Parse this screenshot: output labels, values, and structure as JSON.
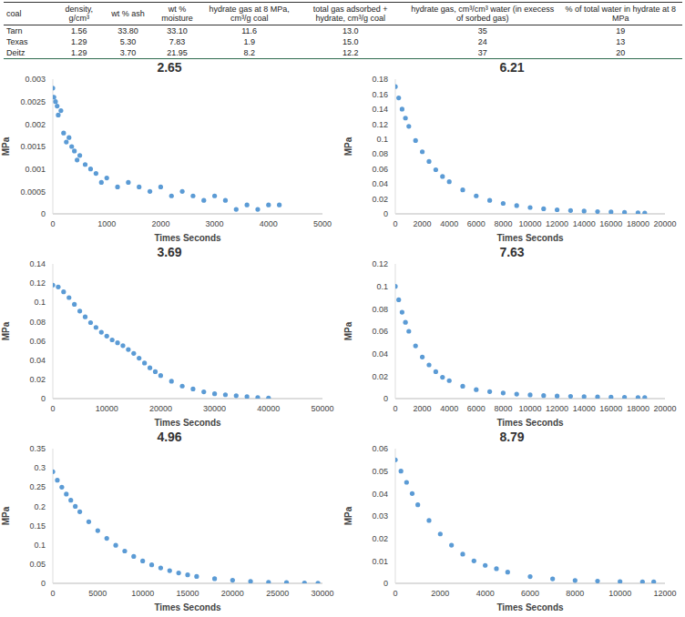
{
  "table": {
    "header": [
      "coal",
      "density, g/cm³",
      "wt % ash",
      "wt % moisture",
      "hydrate gas at 8 MPa, cm³/g coal",
      "total gas adsorbed + hydrate, cm³/g coal",
      "hydrate gas, cm³/cm³ water (in execess of sorbed gas)",
      "% of total water in hydrate at 8 MPa"
    ],
    "rows": [
      [
        "Tarn",
        "1.56",
        "33.80",
        "33.10",
        "11.6",
        "13.0",
        "35",
        "19"
      ],
      [
        "Texas",
        "1.29",
        "5.30",
        "7.83",
        "1.9",
        "15.0",
        "24",
        "13"
      ],
      [
        "Deitz",
        "1.29",
        "3.70",
        "21.95",
        "8.2",
        "12.2",
        "37",
        "20"
      ]
    ]
  },
  "chart_data": [
    {
      "type": "scatter",
      "title": "2.65",
      "x_label": "Times Seconds",
      "y_label": "MPa",
      "color": "#5b9bd5",
      "marker": "circle",
      "grid": false,
      "x": [
        0,
        20,
        50,
        80,
        100,
        150,
        200,
        250,
        300,
        350,
        400,
        450,
        500,
        600,
        700,
        800,
        900,
        1000,
        1200,
        1400,
        1600,
        1800,
        2000,
        2200,
        2400,
        2600,
        2800,
        3000,
        3200,
        3400,
        3600,
        3800,
        4000,
        4200
      ],
      "values": [
        0.0028,
        0.0026,
        0.0025,
        0.0024,
        0.0022,
        0.0023,
        0.0018,
        0.0016,
        0.0017,
        0.0015,
        0.0014,
        0.0012,
        0.0013,
        0.0011,
        0.001,
        0.0009,
        0.0007,
        0.0008,
        0.0006,
        0.0007,
        0.0006,
        0.0005,
        0.0006,
        0.0004,
        0.0005,
        0.0004,
        0.0003,
        0.0004,
        0.0003,
        0.0001,
        0.0002,
        0.0001,
        0.0002,
        0.0002
      ],
      "xlim": [
        0,
        5000
      ],
      "xticks": [
        0,
        1000,
        2000,
        3000,
        4000,
        5000
      ],
      "ylim": [
        0,
        0.003
      ],
      "yticks": [
        0,
        0.0005,
        0.001,
        0.0015,
        0.002,
        0.0025,
        0.003
      ]
    },
    {
      "type": "scatter",
      "title": "6.21",
      "x_label": "Times Seconds",
      "y_label": "MPa",
      "color": "#5b9bd5",
      "marker": "circle",
      "grid": false,
      "x": [
        0,
        250,
        500,
        750,
        1000,
        1500,
        2000,
        2500,
        3000,
        3500,
        4000,
        5000,
        6000,
        7000,
        8000,
        9000,
        10000,
        11000,
        12000,
        13000,
        14000,
        15000,
        16000,
        17000,
        18000,
        18500
      ],
      "values": [
        0.17,
        0.155,
        0.14,
        0.128,
        0.117,
        0.098,
        0.083,
        0.07,
        0.059,
        0.05,
        0.043,
        0.032,
        0.024,
        0.018,
        0.014,
        0.011,
        0.0085,
        0.0068,
        0.0055,
        0.0045,
        0.0037,
        0.003,
        0.0025,
        0.002,
        0.0015,
        0.0012
      ],
      "xlim": [
        0,
        20000
      ],
      "xticks": [
        0,
        2000,
        4000,
        6000,
        8000,
        10000,
        12000,
        14000,
        16000,
        18000,
        20000
      ],
      "ylim": [
        0,
        0.18
      ],
      "yticks": [
        0,
        0.02,
        0.04,
        0.06,
        0.08,
        0.1,
        0.12,
        0.14,
        0.16,
        0.18
      ]
    },
    {
      "type": "scatter",
      "title": "3.69",
      "x_label": "Times Seconds",
      "y_label": "MPa",
      "color": "#5b9bd5",
      "marker": "circle",
      "grid": false,
      "x": [
        0,
        1000,
        2000,
        3000,
        4000,
        5000,
        6000,
        7000,
        8000,
        9000,
        10000,
        11000,
        12000,
        13000,
        14000,
        15000,
        16000,
        17000,
        18000,
        19000,
        20000,
        22000,
        24000,
        26000,
        28000,
        30000,
        32000,
        34000,
        36000,
        38000,
        40000
      ],
      "values": [
        0.118,
        0.116,
        0.111,
        0.105,
        0.098,
        0.091,
        0.085,
        0.079,
        0.074,
        0.069,
        0.065,
        0.061,
        0.058,
        0.055,
        0.051,
        0.047,
        0.042,
        0.037,
        0.032,
        0.028,
        0.024,
        0.018,
        0.013,
        0.01,
        0.007,
        0.005,
        0.004,
        0.003,
        0.002,
        0.001,
        0.0005
      ],
      "xlim": [
        0,
        50000
      ],
      "xticks": [
        0,
        10000,
        20000,
        30000,
        40000,
        50000
      ],
      "ylim": [
        0,
        0.14
      ],
      "yticks": [
        0,
        0.02,
        0.04,
        0.06,
        0.08,
        0.1,
        0.12,
        0.14
      ]
    },
    {
      "type": "scatter",
      "title": "7.63",
      "x_label": "Times Seconds",
      "y_label": "MPa",
      "color": "#5b9bd5",
      "marker": "circle",
      "grid": false,
      "x": [
        0,
        250,
        500,
        750,
        1000,
        1500,
        2000,
        2500,
        3000,
        3500,
        4000,
        5000,
        6000,
        7000,
        8000,
        9000,
        10000,
        11000,
        12000,
        13000,
        14000,
        15000,
        16000,
        17000,
        18000,
        18500
      ],
      "values": [
        0.1,
        0.088,
        0.077,
        0.068,
        0.06,
        0.047,
        0.037,
        0.03,
        0.024,
        0.019,
        0.016,
        0.011,
        0.008,
        0.0062,
        0.005,
        0.004,
        0.0033,
        0.0027,
        0.0023,
        0.002,
        0.0017,
        0.0015,
        0.0013,
        0.0012,
        0.001,
        0.001
      ],
      "xlim": [
        0,
        20000
      ],
      "xticks": [
        0,
        2000,
        4000,
        6000,
        8000,
        10000,
        12000,
        14000,
        16000,
        18000,
        20000
      ],
      "ylim": [
        0,
        0.12
      ],
      "yticks": [
        0,
        0.02,
        0.04,
        0.06,
        0.08,
        0.1,
        0.12
      ]
    },
    {
      "type": "scatter",
      "title": "4.96",
      "x_label": "Times Seconds",
      "y_label": "MPa",
      "color": "#5b9bd5",
      "marker": "circle",
      "grid": false,
      "x": [
        0,
        500,
        1000,
        1500,
        2000,
        2500,
        3000,
        4000,
        5000,
        6000,
        7000,
        8000,
        9000,
        10000,
        11000,
        12000,
        13000,
        14000,
        15000,
        16000,
        18000,
        20000,
        22000,
        24000,
        26000,
        28000,
        29500
      ],
      "values": [
        0.29,
        0.268,
        0.25,
        0.232,
        0.216,
        0.2,
        0.186,
        0.16,
        0.137,
        0.117,
        0.099,
        0.084,
        0.07,
        0.058,
        0.048,
        0.04,
        0.033,
        0.027,
        0.022,
        0.018,
        0.012,
        0.008,
        0.005,
        0.003,
        0.002,
        0.001,
        0.0005
      ],
      "xlim": [
        0,
        30000
      ],
      "xticks": [
        0,
        5000,
        10000,
        15000,
        20000,
        25000,
        30000
      ],
      "ylim": [
        0,
        0.35
      ],
      "yticks": [
        0,
        0.05,
        0.1,
        0.15,
        0.2,
        0.25,
        0.3,
        0.35
      ]
    },
    {
      "type": "scatter",
      "title": "8.79",
      "x_label": "Times Seconds",
      "y_label": "MPa",
      "color": "#5b9bd5",
      "marker": "circle",
      "grid": false,
      "x": [
        0,
        250,
        500,
        750,
        1000,
        1500,
        2000,
        2500,
        3000,
        3500,
        4000,
        4500,
        5000,
        6000,
        7000,
        8000,
        9000,
        10000,
        11000,
        11500
      ],
      "values": [
        0.055,
        0.05,
        0.045,
        0.04,
        0.035,
        0.028,
        0.022,
        0.017,
        0.013,
        0.01,
        0.008,
        0.0065,
        0.005,
        0.003,
        0.002,
        0.0013,
        0.001,
        0.0008,
        0.0007,
        0.0007
      ],
      "xlim": [
        0,
        12000
      ],
      "xticks": [
        0,
        2000,
        4000,
        6000,
        8000,
        10000,
        12000
      ],
      "ylim": [
        0,
        0.06
      ],
      "yticks": [
        0,
        0.01,
        0.02,
        0.03,
        0.04,
        0.05,
        0.06
      ]
    }
  ]
}
